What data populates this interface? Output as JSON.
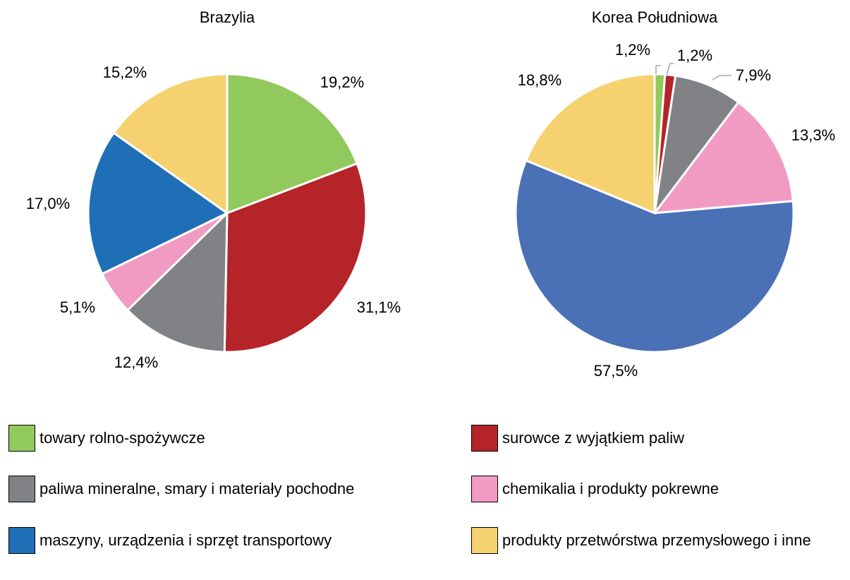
{
  "chart_data": [
    {
      "type": "pie",
      "title": "Brazylia",
      "values": [
        19.2,
        31.1,
        12.4,
        5.1,
        17.0,
        15.2
      ],
      "value_labels": [
        "19,2%",
        "31,1%",
        "12,4%",
        "5,1%",
        "17,0%",
        "15,2%"
      ],
      "colors": [
        "#92c95d",
        "#b52428",
        "#808285",
        "#f19bc3",
        "#1f6fb7",
        "#f5d26f"
      ]
    },
    {
      "type": "pie",
      "title": "Korea Południowa",
      "values": [
        1.2,
        1.2,
        7.9,
        13.3,
        57.5,
        18.8
      ],
      "value_labels": [
        "1,2%",
        "1,2%",
        "7,9%",
        "13,3%",
        "57,5%",
        "18,8%"
      ],
      "colors": [
        "#92c95d",
        "#b52428",
        "#808285",
        "#f19bc3",
        "#4a70b5",
        "#f5d26f"
      ]
    }
  ],
  "legend": {
    "labels": [
      "towary rolno-spożywcze",
      "surowce z wyjątkiem paliw",
      "paliwa mineralne, smary i materiały pochodne",
      "chemikalia i produkty pokrewne",
      "maszyny, urządzenia i sprzęt transportowy",
      "produkty przetwórstwa przemysłowego i inne"
    ],
    "colors": [
      "#92c95d",
      "#b52428",
      "#808285",
      "#f19bc3",
      "#1f6fb7",
      "#f5d26f"
    ]
  }
}
